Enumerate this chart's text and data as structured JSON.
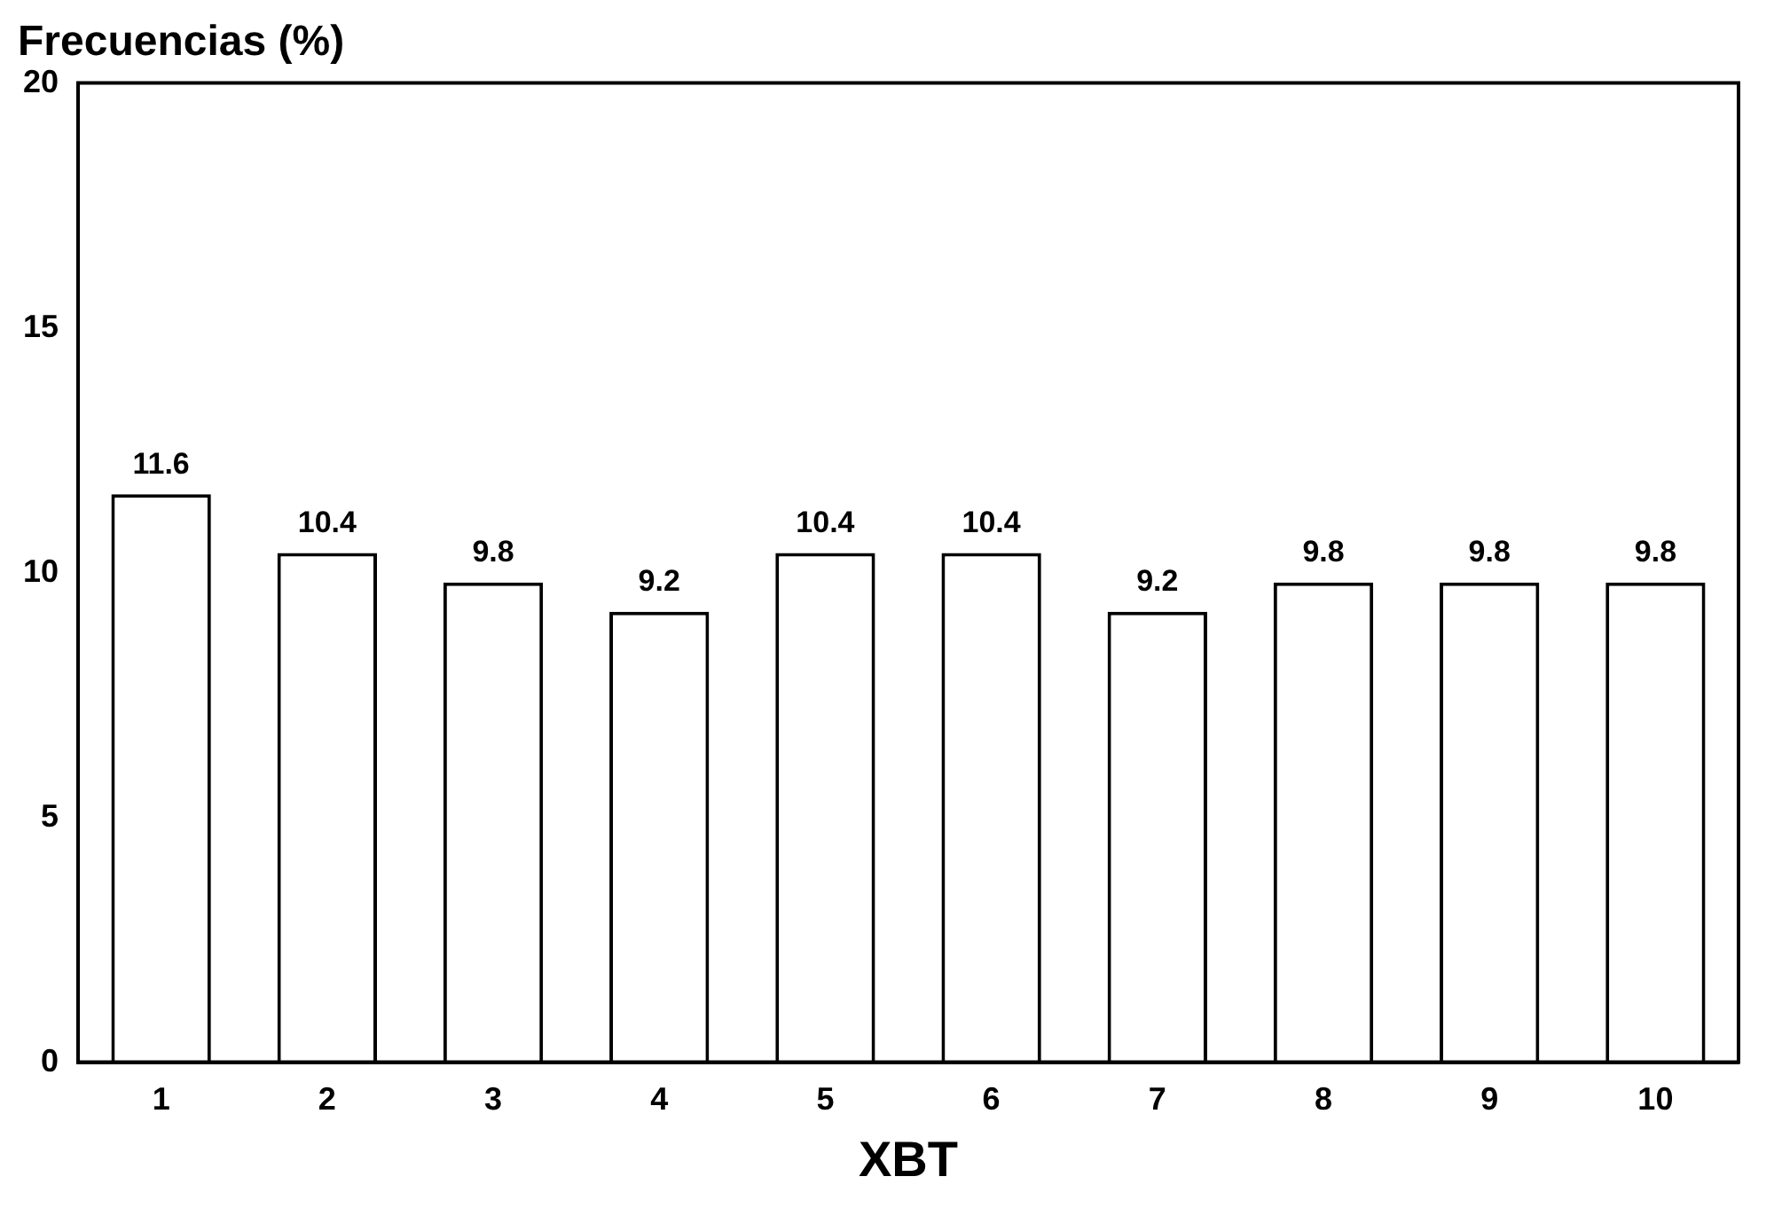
{
  "chart_data": {
    "type": "bar",
    "title": "Frecuencias (%)",
    "xlabel": "XBT",
    "categories": [
      "1",
      "2",
      "3",
      "4",
      "5",
      "6",
      "7",
      "8",
      "9",
      "10"
    ],
    "values": [
      11.6,
      10.4,
      9.8,
      9.2,
      10.4,
      10.4,
      9.2,
      9.8,
      9.8,
      9.8
    ],
    "color": "#ffffff",
    "ylim": [
      0,
      20
    ],
    "yticks": [
      0,
      5,
      10,
      15,
      20
    ],
    "grid": false,
    "data_labels": true
  }
}
